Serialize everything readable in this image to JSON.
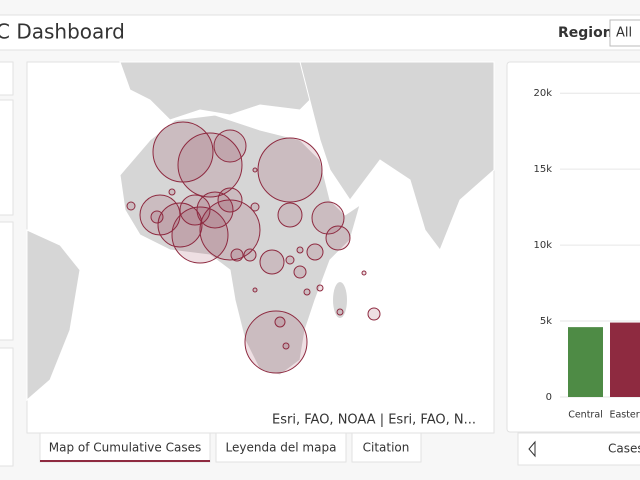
{
  "header": {
    "title": "C Dashboard",
    "filter_label": "Region",
    "filter_value": "All"
  },
  "map": {
    "attribution": "Esri, FAO, NOAA | Esri, FAO, N...",
    "tabs": [
      "Map of Cumulative Cases",
      "Leyenda del mapa",
      "Citation"
    ]
  },
  "chart_data": {
    "type": "bar",
    "categories": [
      "Central",
      "Eastern"
    ],
    "values": [
      4600,
      4900
    ],
    "colors": [
      "#4e8b45",
      "#8e2a40"
    ],
    "ylim": [
      0,
      21000
    ],
    "yticks": [
      0,
      {
        "value": 5000,
        "label": "5k"
      },
      {
        "value": 10000,
        "label": "10k"
      },
      {
        "value": 15000,
        "label": "15k"
      },
      {
        "value": 20000,
        "label": "20k"
      }
    ],
    "grid": true,
    "x_label": "Cases"
  }
}
